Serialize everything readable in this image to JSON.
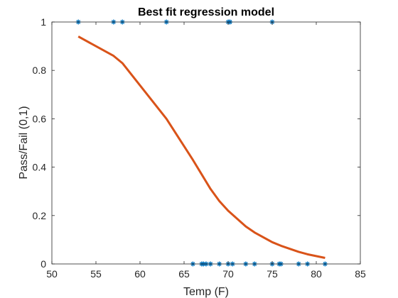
{
  "chart_data": {
    "type": "scatter",
    "title": "Best fit regression model",
    "xlabel": "Temp (F)",
    "ylabel": "Pass/Fail (0,1)",
    "xlim": [
      50,
      85
    ],
    "ylim": [
      0,
      1
    ],
    "xticks": [
      50,
      55,
      60,
      65,
      70,
      75,
      80,
      85
    ],
    "yticks": [
      0,
      0.2,
      0.4,
      0.6,
      0.8,
      1
    ],
    "ytick_labels": [
      "0",
      "0.2",
      "0.4",
      "0.6",
      "0.8",
      "1"
    ],
    "grid": false,
    "box": true,
    "series": [
      {
        "kind": "scatter",
        "marker": "asterisk",
        "color": "#0072BD",
        "x": [
          53,
          57,
          58,
          63,
          70,
          70.2,
          70.2,
          75,
          66,
          67,
          67.2,
          67.5,
          68,
          69,
          70,
          70.5,
          72,
          73,
          75,
          75.8,
          76,
          78,
          79,
          81
        ],
        "y": [
          1,
          1,
          1,
          1,
          1,
          1,
          1,
          1,
          0,
          0,
          0,
          0,
          0,
          0,
          0,
          0,
          0,
          0,
          0,
          0,
          0,
          0,
          0,
          0
        ]
      },
      {
        "kind": "line",
        "color": "#D95319",
        "x": [
          53,
          57,
          58,
          63,
          66,
          67,
          68,
          69,
          70,
          72,
          73,
          75,
          76,
          78,
          79,
          81
        ],
        "y": [
          0.94,
          0.86,
          0.83,
          0.6,
          0.43,
          0.37,
          0.31,
          0.26,
          0.22,
          0.155,
          0.13,
          0.09,
          0.075,
          0.05,
          0.04,
          0.025
        ]
      }
    ]
  }
}
